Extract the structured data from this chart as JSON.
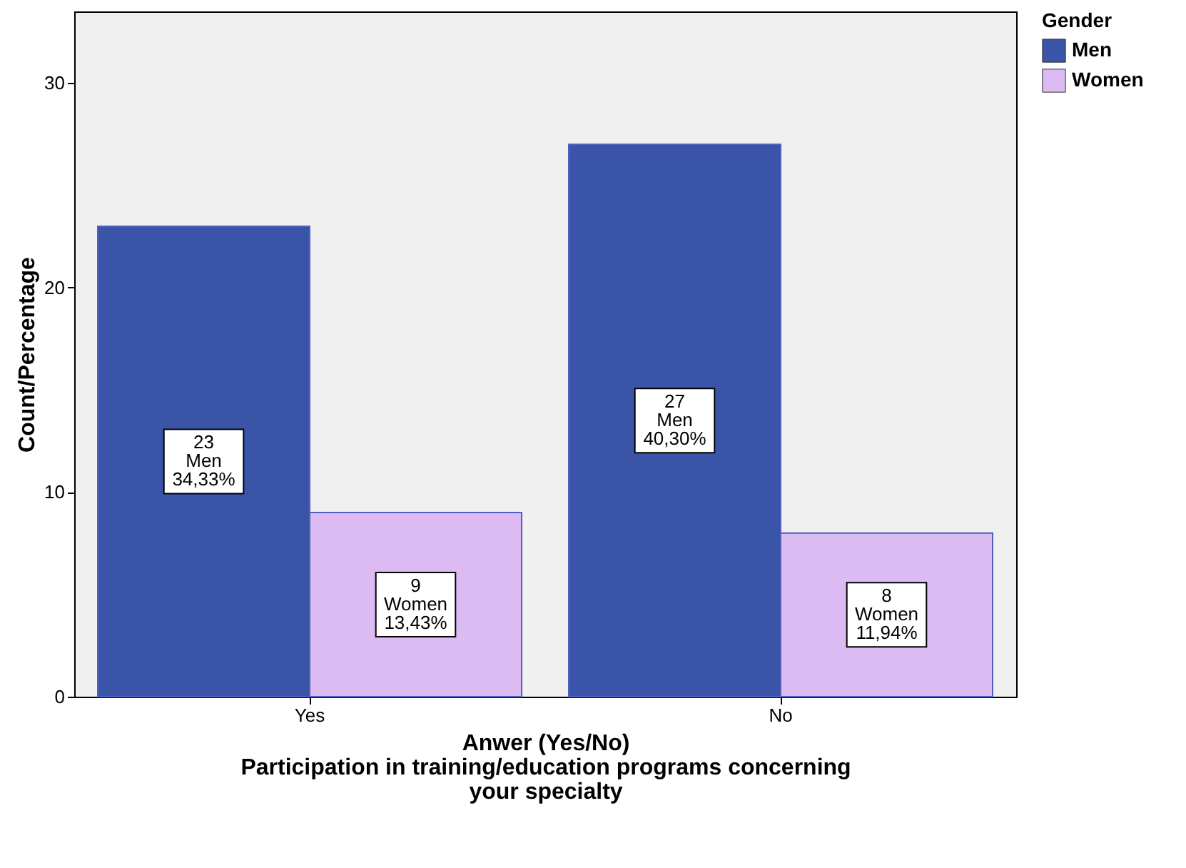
{
  "chart_data": {
    "type": "bar",
    "xlabel": "Anwer (Yes/No)\nParticipation in training/education programs concerning\nyour specialty",
    "ylabel": "Count/Percentage",
    "legend_title": "Gender",
    "legend": "top right",
    "categories": [
      "Yes",
      "No"
    ],
    "series": [
      {
        "name": "Men",
        "color": "#3a54a8",
        "values": [
          23,
          27
        ],
        "value_labels": [
          "23\nMen\n34,33%",
          "27\nMen\n40,30%"
        ]
      },
      {
        "name": "Women",
        "color": "#dcbaf2",
        "values": [
          9,
          8
        ],
        "value_labels": [
          "9\nWomen\n13,43%",
          "8\nWomen\n11,94%"
        ]
      }
    ],
    "ylim": [
      0,
      33.5
    ],
    "yticks": [
      0,
      10,
      20,
      30
    ]
  }
}
